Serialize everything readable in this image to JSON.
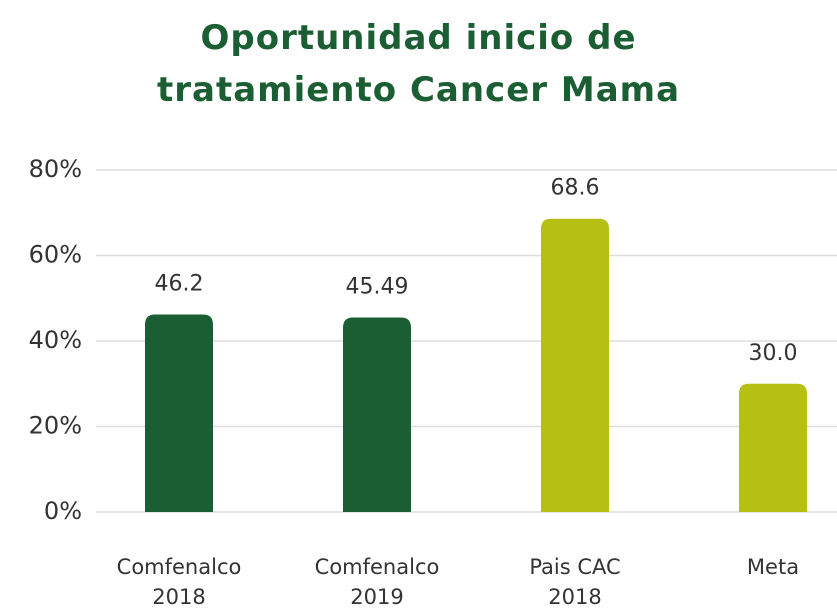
{
  "chart_data": {
    "type": "bar",
    "title": "Oportunidad inicio de tratamiento Cancer Mama",
    "categories": [
      "Comfenalco 2018",
      "Comfenalco 2019",
      "Pais CAC 2018",
      "Meta"
    ],
    "values": [
      46.2,
      45.49,
      68.6,
      30
    ],
    "value_labels": [
      "46.2",
      "45.49",
      "68.6",
      "30.0"
    ],
    "colors": [
      "#1b5e33",
      "#1b5e33",
      "#b6bf14",
      "#b6bf14"
    ],
    "ylim": [
      0,
      80
    ],
    "yticks": [
      {
        "value": 0,
        "label": "0%"
      },
      {
        "value": 20,
        "label": "20%"
      },
      {
        "value": 40,
        "label": "40%"
      },
      {
        "value": 60,
        "label": "60%"
      },
      {
        "value": 80,
        "label": "80%"
      }
    ],
    "grid": true
  }
}
